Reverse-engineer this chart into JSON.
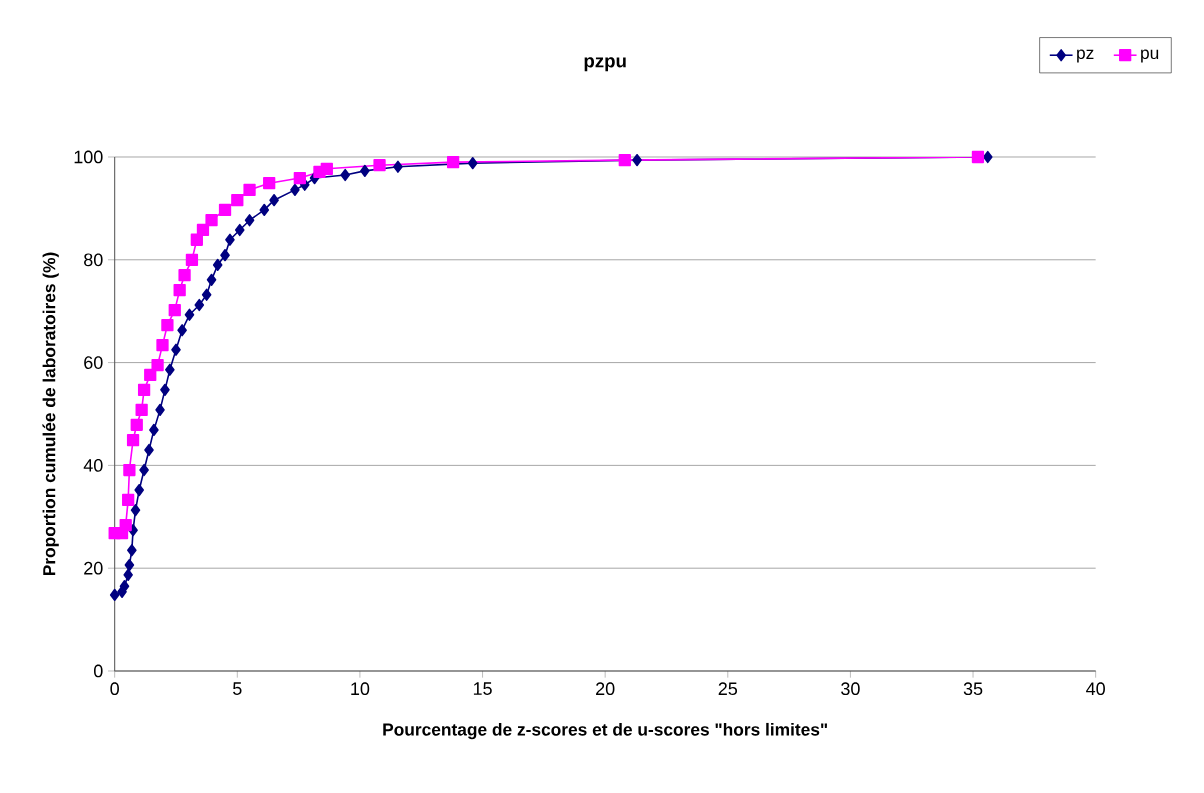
{
  "chart_data": {
    "type": "line",
    "title": "pzpu",
    "xlabel": "Pourcentage de z-scores et de u-scores \"hors limites\"",
    "ylabel": "Proportion cumulée de laboratoires (%)",
    "xlim": [
      0,
      40
    ],
    "xticks": [
      0,
      5,
      10,
      15,
      20,
      25,
      30,
      35,
      40
    ],
    "ylim": [
      0,
      100
    ],
    "yticks": [
      0,
      20,
      40,
      60,
      80,
      100
    ],
    "grid": "y",
    "legend": "top right",
    "series": [
      {
        "name": "pz",
        "color": "#000080",
        "marker": "diamond",
        "x": [
          0,
          0.3,
          0.4,
          0.55,
          0.6,
          0.7,
          0.75,
          0.85,
          1.0,
          1.2,
          1.4,
          1.6,
          1.85,
          2.05,
          2.25,
          2.5,
          2.75,
          3.05,
          3.45,
          3.75,
          3.95,
          4.2,
          4.5,
          4.7,
          5.1,
          5.5,
          6.1,
          6.5,
          7.35,
          7.75,
          8.15,
          9.4,
          10.2,
          11.55,
          14.6,
          21.3,
          35.6
        ],
        "values": [
          14.8,
          15.4,
          16.5,
          18.7,
          20.6,
          23.5,
          27.4,
          31.3,
          35.2,
          39.1,
          43,
          46.9,
          50.8,
          54.7,
          58.6,
          62.5,
          66.3,
          69.3,
          71.2,
          73.2,
          76.1,
          79,
          80.9,
          83.9,
          85.8,
          87.7,
          89.7,
          91.6,
          93.6,
          94.6,
          95.9,
          96.5,
          97.3,
          98.1,
          98.8,
          99.4,
          100
        ]
      },
      {
        "name": "pu",
        "color": "#ff00ff",
        "marker": "square",
        "x": [
          0,
          0.3,
          0.45,
          0.55,
          0.6,
          0.75,
          0.9,
          1.1,
          1.2,
          1.45,
          1.75,
          1.95,
          2.15,
          2.45,
          2.65,
          2.85,
          3.15,
          3.35,
          3.6,
          3.95,
          4.5,
          5.0,
          5.5,
          6.3,
          7.55,
          8.35,
          8.65,
          10.8,
          13.8,
          20.8,
          35.2
        ],
        "values": [
          26.8,
          26.8,
          28.4,
          33.3,
          39.1,
          44.9,
          47.9,
          50.8,
          54.7,
          57.6,
          59.5,
          63.4,
          67.3,
          70.2,
          74.1,
          77,
          80,
          83.9,
          85.8,
          87.7,
          89.7,
          91.6,
          93.6,
          94.9,
          95.9,
          97.1,
          97.7,
          98.4,
          99.0,
          99.4,
          100
        ]
      }
    ]
  }
}
